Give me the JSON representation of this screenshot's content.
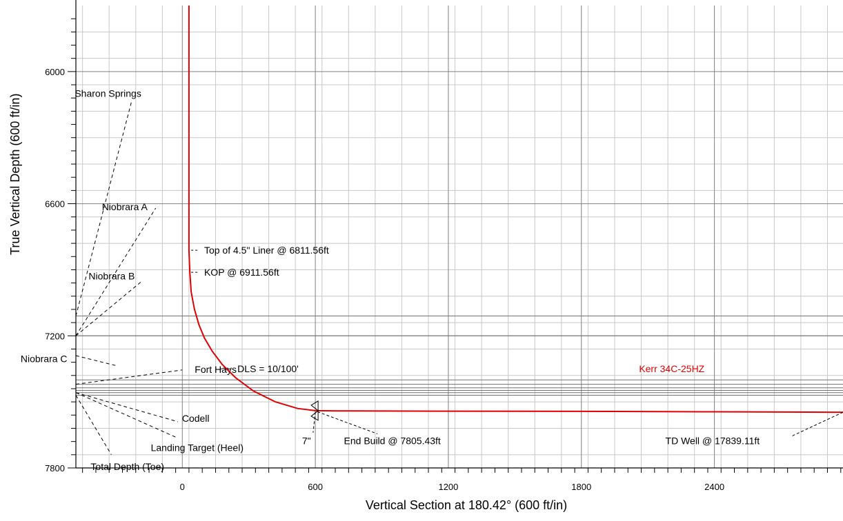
{
  "chart_data": {
    "type": "line",
    "xlabel": "Vertical Section at 180.42° (600 ft/in)",
    "ylabel": "True Vertical Depth (600 ft/in)",
    "xlim": [
      -480,
      2980
    ],
    "ylim": [
      5700,
      7800
    ],
    "y_inverted": true,
    "grid": true,
    "xticks": [
      0,
      600,
      1200,
      1800,
      2400
    ],
    "yticks": [
      6000,
      6600,
      7200,
      7800
    ],
    "series": [
      {
        "name": "Kerr 34C-25HZ",
        "color": "#e00000",
        "x": [
          30,
          30,
          34,
          40,
          55,
          75,
          100,
          135,
          180,
          240,
          320,
          420,
          520,
          600,
          700,
          1200,
          1800,
          2400,
          2980
        ],
        "y": [
          5700,
          6811.56,
          6911.56,
          7000,
          7080,
          7150,
          7210,
          7270,
          7330,
          7390,
          7450,
          7500,
          7530,
          7540,
          7541,
          7542,
          7543,
          7545,
          7547
        ]
      }
    ],
    "formation_lines_tvd": [
      7110,
      7200,
      7400,
      7420,
      7436,
      7448,
      7458,
      7470
    ],
    "formations": [
      {
        "label": "Sharon Springs",
        "leader_from": [
          -480,
          7110
        ],
        "leader_to": [
          -230,
          6140
        ]
      },
      {
        "label": "Niobrara A",
        "leader_from": [
          -480,
          7200
        ],
        "leader_to": [
          -120,
          6620
        ]
      },
      {
        "label": "Niobrara B",
        "leader_from": [
          -480,
          7200
        ],
        "leader_to": [
          -180,
          6950
        ]
      },
      {
        "label": "Niobrara C",
        "leader_from": [
          -480,
          7290
        ],
        "leader_to": [
          -300,
          7335
        ]
      },
      {
        "label": "Fort Hays",
        "leader_from": [
          -480,
          7420
        ],
        "leader_to": [
          0,
          7355
        ]
      },
      {
        "label": "Codell",
        "leader_from": [
          -480,
          7458
        ],
        "leader_to": [
          -20,
          7590
        ]
      },
      {
        "label": "Landing Target (Heel)",
        "leader_from": [
          -480,
          7458
        ],
        "leader_to": [
          -30,
          7660
        ]
      },
      {
        "label": "Total Depth (Toe)",
        "leader_from": [
          -480,
          7470
        ],
        "leader_to": [
          -320,
          7740
        ]
      }
    ],
    "annotations": [
      {
        "label": "Top of 4.5\" Liner @ 6811.56ft",
        "at": [
          80,
          6811.56
        ]
      },
      {
        "label": "KOP @ 6911.56ft",
        "at": [
          80,
          6911.56
        ]
      },
      {
        "label": "DLS = 10/100'",
        "at": [
          230,
          7350
        ]
      },
      {
        "label": "7\"",
        "at": [
          580,
          7660
        ]
      },
      {
        "label": "End Build @ 7805.43ft",
        "at": [
          760,
          7660
        ]
      },
      {
        "label": "TD Well @ 17839.11ft",
        "at": [
          2490,
          7660
        ]
      }
    ],
    "series_label": {
      "text": "Kerr 34C-25HZ",
      "at": [
        2060,
        7365
      ]
    }
  }
}
